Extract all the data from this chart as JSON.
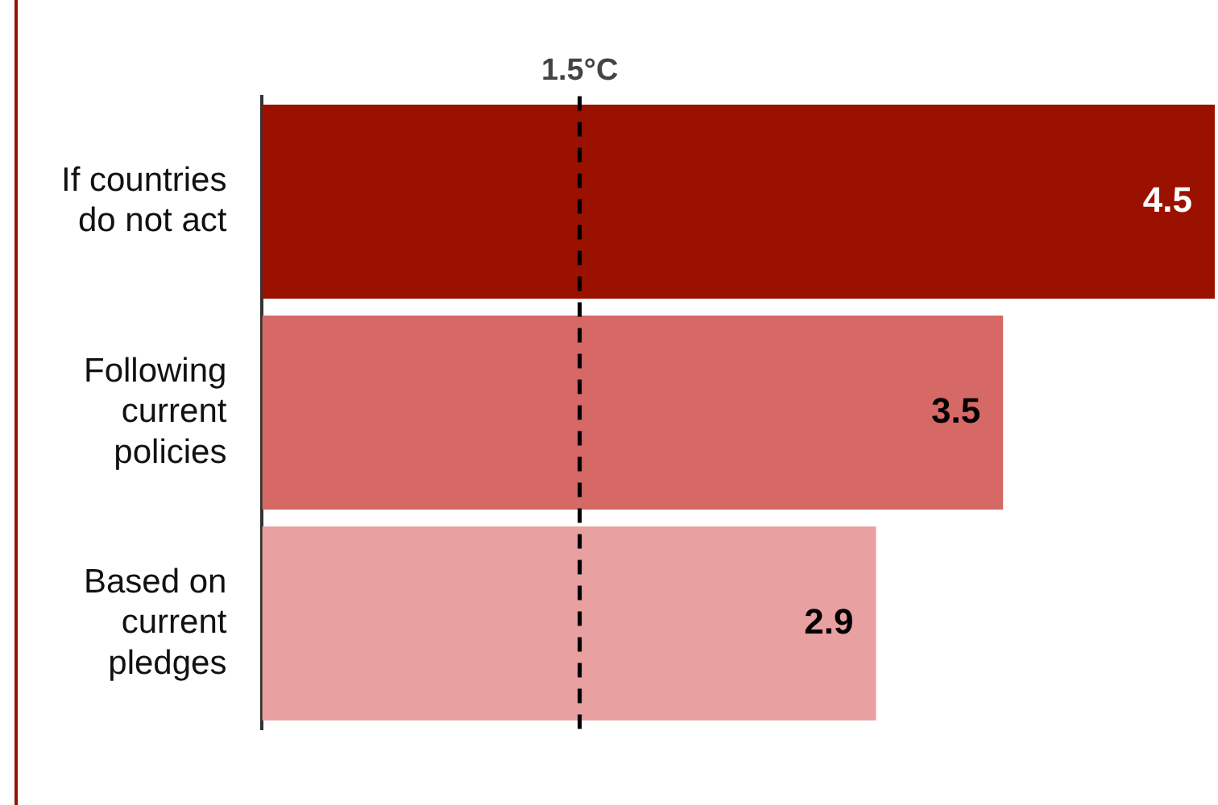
{
  "chart_data": {
    "type": "bar",
    "orientation": "horizontal",
    "categories": [
      "If countries do not act",
      "Following current policies",
      "Based on current pledges"
    ],
    "values": [
      4.5,
      3.5,
      2.9
    ],
    "colors": [
      "#9b1100",
      "#d66866",
      "#e8a0a0"
    ],
    "tick_labels": "y",
    "grid": false,
    "legend": false,
    "data_labels": true,
    "ref_lines": [
      {
        "axis": "x",
        "value": 1.5,
        "label": "1.5°C",
        "color": "#000000",
        "line_style": "dashed"
      }
    ]
  }
}
